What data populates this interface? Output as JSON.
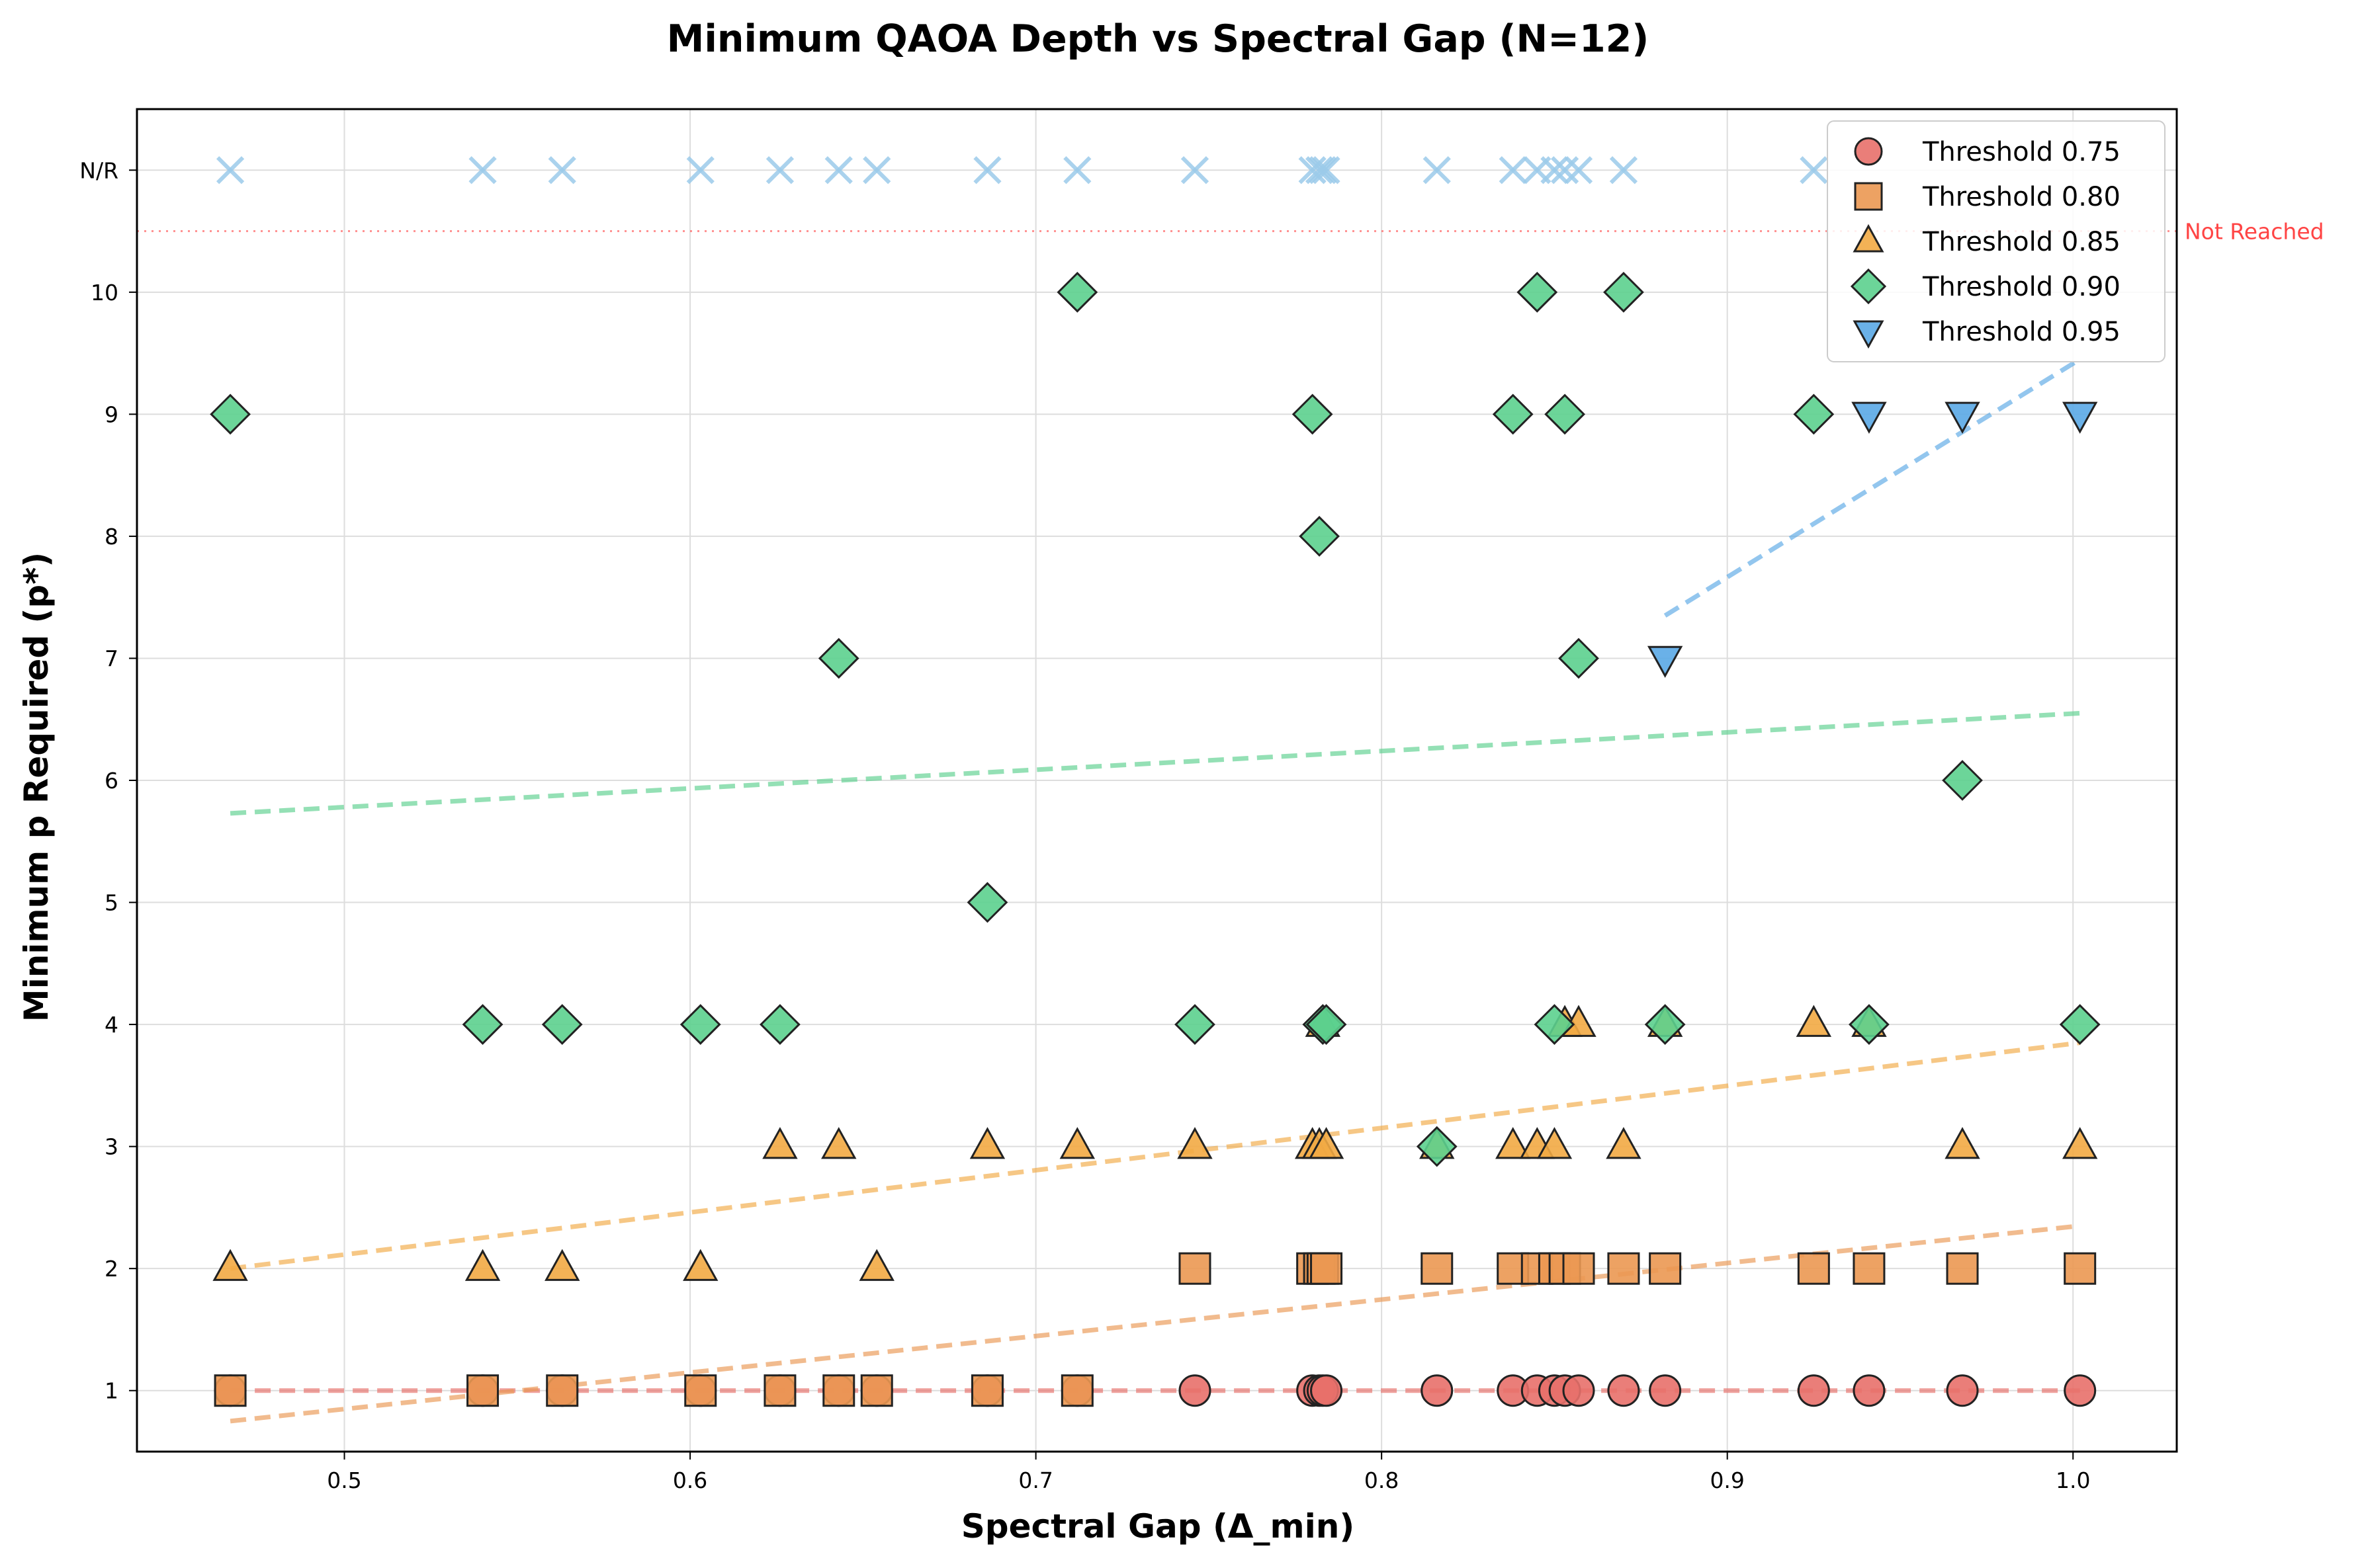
{
  "chart_data": {
    "type": "scatter",
    "title": "Minimum QAOA Depth vs Spectral Gap (N=12)",
    "xlabel": "Spectral Gap (Δ_min)",
    "ylabel": "Minimum p Required (p*)",
    "xlim": [
      0.44,
      1.03
    ],
    "ylim": [
      0.5,
      11.5
    ],
    "xticks": [
      0.5,
      0.6,
      0.7,
      0.8,
      0.9,
      1.0
    ],
    "xtick_labels": [
      "0.5",
      "0.6",
      "0.7",
      "0.8",
      "0.9",
      "1.0"
    ],
    "yticks": [
      1,
      2,
      3,
      4,
      5,
      6,
      7,
      8,
      9,
      10,
      11
    ],
    "ytick_labels": [
      "1",
      "2",
      "3",
      "4",
      "5",
      "6",
      "7",
      "8",
      "9",
      "10",
      "N/R"
    ],
    "grid": true,
    "legend_position": "top-right",
    "not_reached_line": {
      "y": 10.5,
      "label": "Not Reached",
      "color": "#ff6666"
    },
    "gaps": [
      0.467,
      0.54,
      0.563,
      0.603,
      0.626,
      0.643,
      0.654,
      0.686,
      0.712,
      0.746,
      0.78,
      0.782,
      0.783,
      0.784,
      0.816,
      0.838,
      0.845,
      0.85,
      0.853,
      0.857,
      0.87,
      0.882,
      0.925,
      0.941,
      0.968,
      1.002
    ],
    "series": [
      {
        "name": "Threshold 0.75",
        "marker": "circle",
        "color": "#e8706a",
        "x": [
          0.467,
          0.54,
          0.563,
          0.603,
          0.626,
          0.643,
          0.654,
          0.686,
          0.712,
          0.746,
          0.78,
          0.782,
          0.783,
          0.784,
          0.816,
          0.838,
          0.845,
          0.85,
          0.853,
          0.857,
          0.87,
          0.882,
          0.925,
          0.941,
          0.968,
          1.002
        ],
        "y": [
          1,
          1,
          1,
          1,
          1,
          1,
          1,
          1,
          1,
          1,
          1,
          1,
          1,
          1,
          1,
          1,
          1,
          1,
          1,
          1,
          1,
          1,
          1,
          1,
          1,
          1
        ],
        "trend": [
          [
            0.467,
            1.0
          ],
          [
            1.002,
            1.0
          ]
        ]
      },
      {
        "name": "Threshold 0.80",
        "marker": "square",
        "color": "#eb9852",
        "x": [
          0.467,
          0.54,
          0.563,
          0.603,
          0.626,
          0.643,
          0.654,
          0.686,
          0.712,
          0.746,
          0.78,
          0.782,
          0.783,
          0.784,
          0.816,
          0.838,
          0.845,
          0.85,
          0.853,
          0.857,
          0.87,
          0.882,
          0.925,
          0.941,
          0.968,
          1.002
        ],
        "y": [
          1,
          1,
          1,
          1,
          1,
          1,
          1,
          1,
          1,
          2,
          2,
          2,
          2,
          2,
          2,
          2,
          2,
          2,
          2,
          2,
          2,
          2,
          2,
          2,
          2,
          2
        ],
        "trend": [
          [
            0.467,
            0.75
          ],
          [
            1.002,
            2.35
          ]
        ]
      },
      {
        "name": "Threshold 0.85",
        "marker": "triangle-up",
        "color": "#f2aa44",
        "x": [
          0.467,
          0.54,
          0.563,
          0.603,
          0.626,
          0.643,
          0.654,
          0.686,
          0.712,
          0.746,
          0.78,
          0.782,
          0.783,
          0.784,
          0.816,
          0.838,
          0.845,
          0.85,
          0.853,
          0.857,
          0.87,
          0.882,
          0.925,
          0.941,
          0.968,
          1.002
        ],
        "y": [
          2,
          2,
          2,
          2,
          3,
          3,
          2,
          3,
          3,
          3,
          3,
          3,
          4,
          3,
          3,
          3,
          3,
          3,
          4,
          4,
          3,
          4,
          4,
          4,
          3,
          3
        ],
        "trend": [
          [
            0.467,
            2.0
          ],
          [
            1.002,
            3.85
          ]
        ]
      },
      {
        "name": "Threshold 0.90",
        "marker": "diamond",
        "color": "#5cd08e",
        "x": [
          0.467,
          0.54,
          0.563,
          0.603,
          0.626,
          0.643,
          0.686,
          0.712,
          0.746,
          0.78,
          0.782,
          0.783,
          0.784,
          0.816,
          0.838,
          0.845,
          0.85,
          0.853,
          0.857,
          0.87,
          0.882,
          0.925,
          0.941,
          0.968,
          1.002
        ],
        "y": [
          9,
          4,
          4,
          4,
          4,
          7,
          5,
          10,
          4,
          9,
          8,
          4,
          4,
          3,
          9,
          10,
          4,
          9,
          7,
          10,
          4,
          9,
          4,
          6,
          4
        ],
        "trend": [
          [
            0.467,
            5.73
          ],
          [
            1.002,
            6.55
          ]
        ]
      },
      {
        "name": "Threshold 0.95",
        "marker": "triangle-down",
        "color": "#5aa9e6",
        "x": [
          0.882,
          0.941,
          0.968,
          1.002
        ],
        "y": [
          7,
          9,
          9,
          9
        ],
        "trend": [
          [
            0.882,
            7.35
          ],
          [
            1.002,
            9.45
          ]
        ]
      }
    ],
    "not_reached": {
      "marker": "x",
      "color": "#9ccbea",
      "x": [
        0.467,
        0.54,
        0.563,
        0.603,
        0.626,
        0.643,
        0.654,
        0.686,
        0.712,
        0.746,
        0.78,
        0.782,
        0.783,
        0.784,
        0.816,
        0.838,
        0.845,
        0.85,
        0.853,
        0.857,
        0.87,
        0.925
      ],
      "y": 11
    }
  }
}
